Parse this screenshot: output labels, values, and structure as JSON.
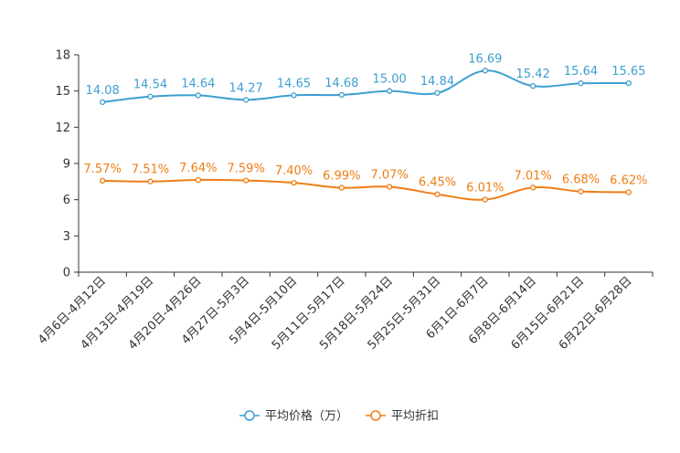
{
  "chart_data": {
    "type": "line",
    "title": "",
    "xlabel": "",
    "ylabel": "",
    "ylim": [
      0,
      18
    ],
    "yticks": [
      0,
      3,
      6,
      9,
      12,
      15,
      18
    ],
    "grid": false,
    "legend_position": "bottom",
    "categories": [
      "4月6日-4月12日",
      "4月13日-4月19日",
      "4月20日-4月26日",
      "4月27日-5月3日",
      "5月4日-5月10日",
      "5月11日-5月17日",
      "5月18日-5月24日",
      "5月25日-5月31日",
      "6月1日-6月7日",
      "6月8日-6月14日",
      "6月15日-6月21日",
      "6月22日-6月28日"
    ],
    "series": [
      {
        "name": "平均价格（万）",
        "color": "#3d9fd1",
        "values": [
          14.08,
          14.54,
          14.64,
          14.27,
          14.65,
          14.68,
          15.0,
          14.84,
          16.69,
          15.42,
          15.64,
          15.65
        ],
        "labels": [
          "14.08",
          "14.54",
          "14.64",
          "14.27",
          "14.65",
          "14.68",
          "15.00",
          "14.84",
          "16.69",
          "15.42",
          "15.64",
          "15.65"
        ]
      },
      {
        "name": "平均折扣",
        "color": "#f07d14",
        "values": [
          7.57,
          7.51,
          7.64,
          7.59,
          7.4,
          6.99,
          7.07,
          6.45,
          6.01,
          7.01,
          6.68,
          6.62
        ],
        "labels": [
          "7.57%",
          "7.51%",
          "7.64%",
          "7.59%",
          "7.40%",
          "6.99%",
          "7.07%",
          "6.45%",
          "6.01%",
          "7.01%",
          "6.68%",
          "6.62%"
        ]
      }
    ]
  }
}
